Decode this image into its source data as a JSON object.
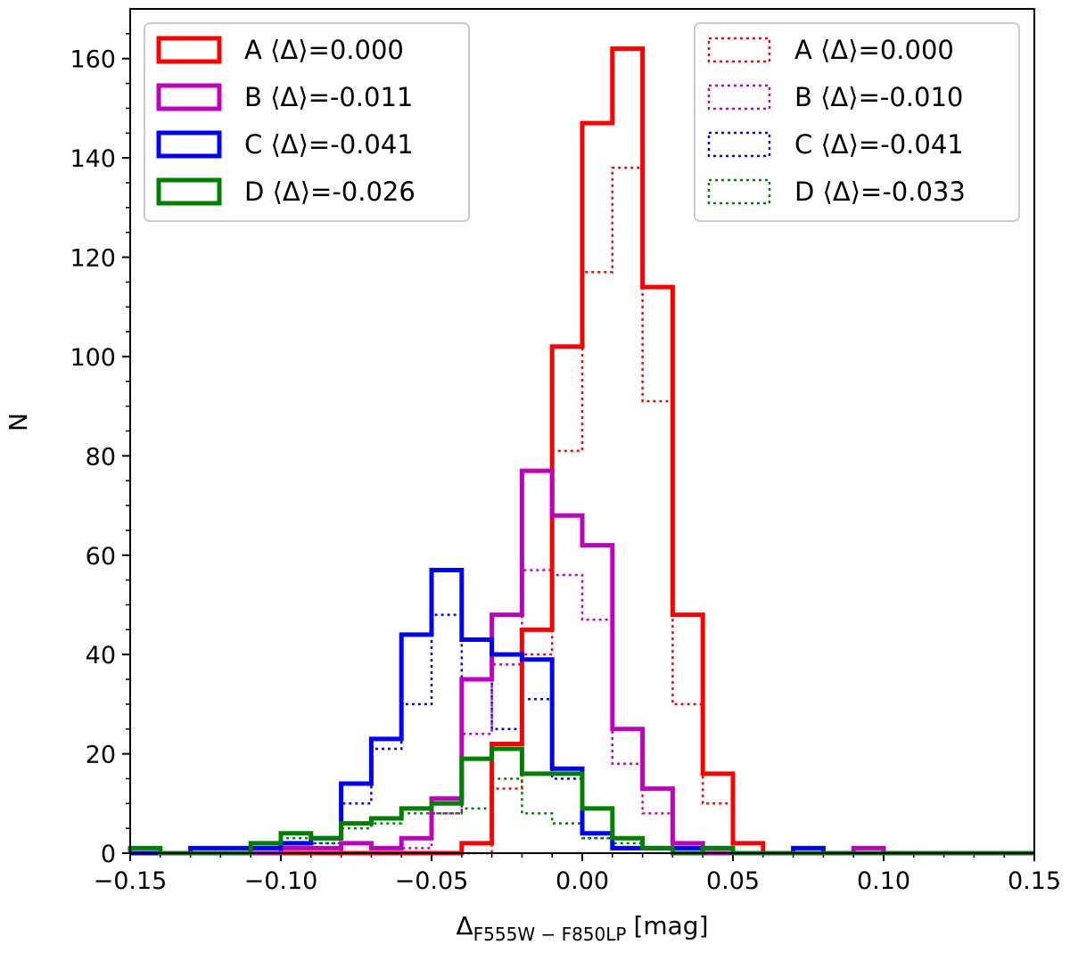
{
  "chart_data": {
    "type": "histogram",
    "xlabel_main": "Δ",
    "xlabel_sub": "F555W − F850LP",
    "xlabel_unit": "[mag]",
    "ylabel": "N",
    "xlim": [
      -0.15,
      0.15
    ],
    "ylim": [
      0,
      170
    ],
    "x_ticks": [
      -0.15,
      -0.1,
      -0.05,
      0.0,
      0.05,
      0.1,
      0.15
    ],
    "x_tick_labels": [
      "−0.15",
      "−0.10",
      "−0.05",
      "0.00",
      "0.05",
      "0.10",
      "0.15"
    ],
    "y_ticks": [
      0,
      20,
      40,
      60,
      80,
      100,
      120,
      140,
      160
    ],
    "y_tick_labels": [
      "0",
      "20",
      "40",
      "60",
      "80",
      "100",
      "120",
      "140",
      "160"
    ],
    "bin_edges": [
      -0.15,
      -0.14,
      -0.13,
      -0.12,
      -0.11,
      -0.1,
      -0.09,
      -0.08,
      -0.07,
      -0.06,
      -0.05,
      -0.04,
      -0.03,
      -0.02,
      -0.01,
      0.0,
      0.01,
      0.02,
      0.03,
      0.04,
      0.05,
      0.06,
      0.07,
      0.08,
      0.09,
      0.1,
      0.11,
      0.12,
      0.13,
      0.14,
      0.15
    ],
    "series": [
      {
        "name": "A",
        "style": "solid",
        "color": "#ff0000",
        "values": [
          0,
          0,
          0,
          0,
          0,
          0,
          0,
          0,
          0,
          0,
          0,
          2,
          22,
          45,
          102,
          147,
          162,
          114,
          48,
          16,
          2,
          0,
          0,
          0,
          0,
          0,
          0,
          0,
          0,
          0
        ]
      },
      {
        "name": "B",
        "style": "solid",
        "color": "#bf00bf",
        "values": [
          0,
          0,
          0,
          0,
          0,
          1,
          1,
          2,
          1,
          3,
          11,
          35,
          48,
          77,
          68,
          62,
          25,
          13,
          2,
          0,
          0,
          0,
          0,
          0,
          1,
          0,
          0,
          0,
          0,
          0
        ]
      },
      {
        "name": "C",
        "style": "solid",
        "color": "#0000ff",
        "values": [
          0,
          0,
          1,
          1,
          1,
          2,
          3,
          14,
          23,
          44,
          57,
          43,
          40,
          39,
          17,
          4,
          1,
          1,
          1,
          1,
          0,
          0,
          1,
          0,
          0,
          0,
          0,
          0,
          0,
          0
        ]
      },
      {
        "name": "D",
        "style": "solid",
        "color": "#008000",
        "values": [
          1,
          0,
          0,
          0,
          2,
          4,
          3,
          6,
          7,
          9,
          10,
          19,
          21,
          16,
          16,
          9,
          3,
          1,
          0,
          1,
          0,
          0,
          0,
          0,
          0,
          0,
          0,
          0,
          0,
          0
        ]
      },
      {
        "name": "A",
        "style": "dotted",
        "color": "#ff0000",
        "values": [
          0,
          0,
          0,
          0,
          0,
          0,
          0,
          0,
          0,
          0,
          0,
          0,
          13,
          40,
          81,
          117,
          138,
          91,
          30,
          10,
          2,
          0,
          0,
          0,
          0,
          0,
          0,
          0,
          0,
          0
        ]
      },
      {
        "name": "B",
        "style": "dotted",
        "color": "#bf00bf",
        "values": [
          0,
          0,
          0,
          0,
          0,
          0,
          0,
          2,
          1,
          1,
          8,
          24,
          38,
          57,
          56,
          47,
          18,
          8,
          1,
          0,
          0,
          0,
          0,
          0,
          0,
          0,
          0,
          0,
          0,
          0
        ]
      },
      {
        "name": "C",
        "style": "dotted",
        "color": "#0000ff",
        "values": [
          0,
          0,
          1,
          1,
          1,
          2,
          2,
          10,
          21,
          30,
          48,
          35,
          25,
          31,
          15,
          3,
          1,
          1,
          0,
          0,
          0,
          0,
          0,
          0,
          0,
          0,
          0,
          0,
          0,
          0
        ]
      },
      {
        "name": "D",
        "style": "dotted",
        "color": "#008000",
        "values": [
          1,
          0,
          0,
          0,
          1,
          3,
          2,
          5,
          6,
          8,
          8,
          9,
          15,
          8,
          6,
          3,
          2,
          1,
          0,
          1,
          0,
          0,
          0,
          0,
          0,
          0,
          0,
          0,
          0,
          0
        ]
      }
    ],
    "legend_left": {
      "location": "upper-left",
      "entries": [
        {
          "label": "A ⟨Δ⟩=0.000",
          "color": "#ff0000",
          "style": "solid"
        },
        {
          "label": "B ⟨Δ⟩=-0.011",
          "color": "#bf00bf",
          "style": "solid"
        },
        {
          "label": "C ⟨Δ⟩=-0.041",
          "color": "#0000ff",
          "style": "solid"
        },
        {
          "label": "D ⟨Δ⟩=-0.026",
          "color": "#008000",
          "style": "solid"
        }
      ]
    },
    "legend_right": {
      "location": "upper-right",
      "entries": [
        {
          "label": "A ⟨Δ⟩=0.000",
          "color": "#ff0000",
          "style": "dotted"
        },
        {
          "label": "B ⟨Δ⟩=-0.010",
          "color": "#bf00bf",
          "style": "dotted"
        },
        {
          "label": "C ⟨Δ⟩=-0.041",
          "color": "#0000ff",
          "style": "dotted"
        },
        {
          "label": "D ⟨Δ⟩=-0.033",
          "color": "#008000",
          "style": "dotted"
        }
      ]
    }
  }
}
